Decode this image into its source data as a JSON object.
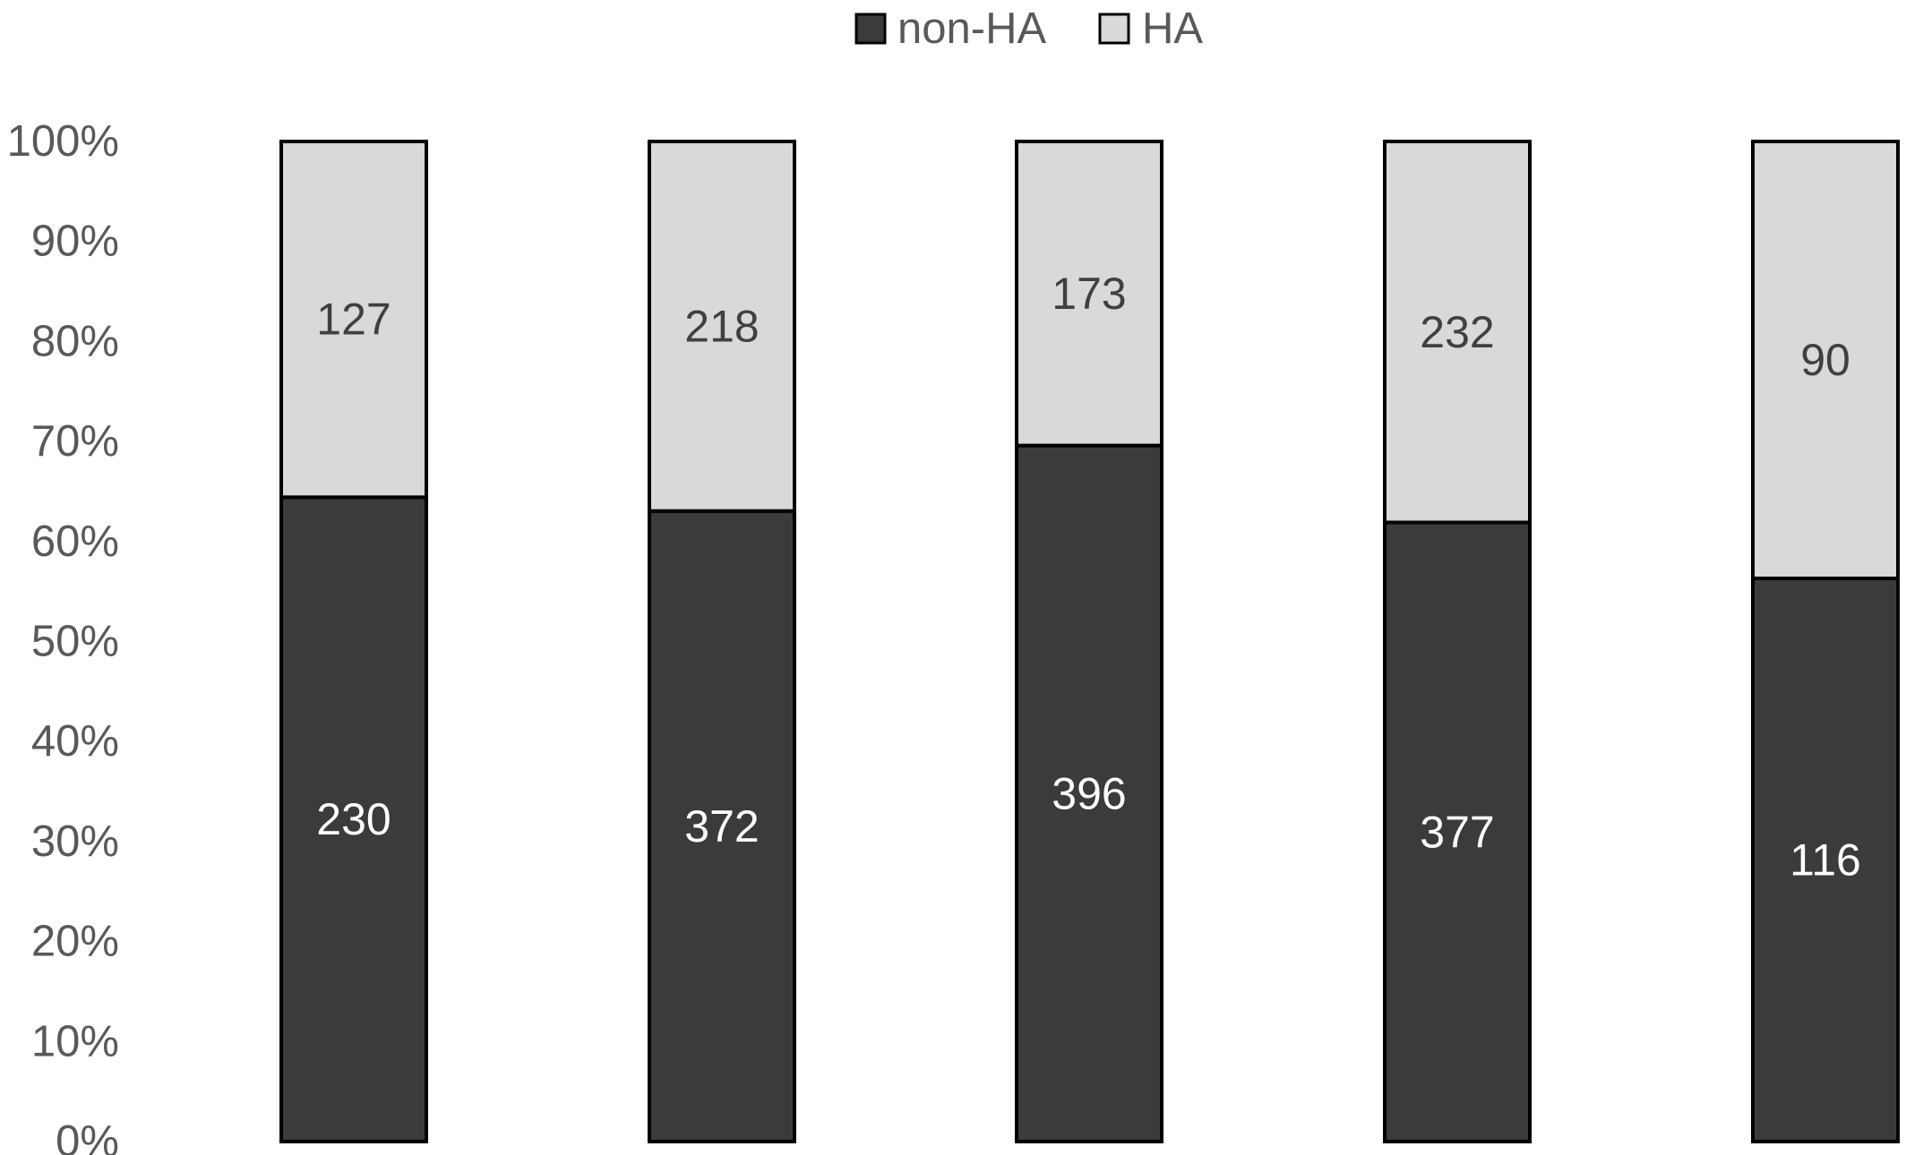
{
  "chart_data": {
    "type": "bar",
    "stacked": true,
    "normalized": true,
    "categories": [
      "",
      "",
      "",
      "",
      ""
    ],
    "series": [
      {
        "name": "non-HA",
        "values": [
          230,
          372,
          396,
          377,
          116
        ],
        "color": "#3b3b3b",
        "label_color": "#ffffff"
      },
      {
        "name": "HA",
        "values": [
          127,
          218,
          173,
          232,
          90
        ],
        "color": "#d9d9d9",
        "label_color": "#404040"
      }
    ],
    "y_ticks": [
      "0%",
      "10%",
      "20%",
      "30%",
      "40%",
      "50%",
      "60%",
      "70%",
      "80%",
      "90%",
      "100%"
    ],
    "ylim": [
      0,
      100
    ],
    "grid": false,
    "legend": "top-center",
    "title": "",
    "xlabel": "",
    "ylabel": ""
  }
}
